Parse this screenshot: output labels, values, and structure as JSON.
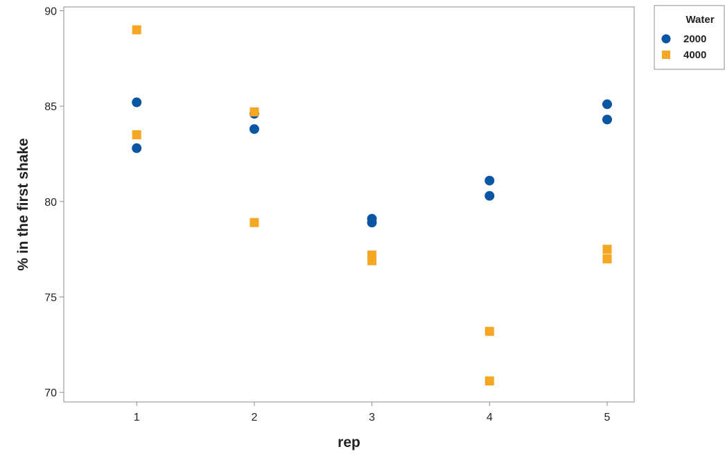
{
  "chart_data": {
    "type": "scatter",
    "xlabel": "rep",
    "ylabel": "% in the first shake",
    "xlim": [
      0.38,
      5.23
    ],
    "ylim": [
      69.5,
      90.2
    ],
    "xticks": [
      1,
      2,
      3,
      4,
      5
    ],
    "yticks": [
      70,
      75,
      80,
      85,
      90
    ],
    "grid": false,
    "legend": {
      "title": "Water",
      "placement": "top-right outside"
    },
    "series": [
      {
        "name": "2000",
        "marker": "circle",
        "color": "#0a56a3",
        "points": [
          [
            1,
            85.2
          ],
          [
            1,
            82.8
          ],
          [
            2,
            84.6
          ],
          [
            2,
            83.8
          ],
          [
            3,
            79.1
          ],
          [
            3,
            78.9
          ],
          [
            4,
            81.1
          ],
          [
            4,
            80.3
          ],
          [
            5,
            85.1
          ],
          [
            5,
            84.3
          ]
        ]
      },
      {
        "name": "4000",
        "marker": "square",
        "color": "#f5a623",
        "points": [
          [
            1,
            89.0
          ],
          [
            1,
            83.5
          ],
          [
            2,
            84.7
          ],
          [
            2,
            78.9
          ],
          [
            3,
            77.2
          ],
          [
            3,
            76.9
          ],
          [
            4,
            73.2
          ],
          [
            4,
            70.6
          ],
          [
            5,
            77.5
          ],
          [
            5,
            77.0
          ]
        ]
      }
    ]
  }
}
